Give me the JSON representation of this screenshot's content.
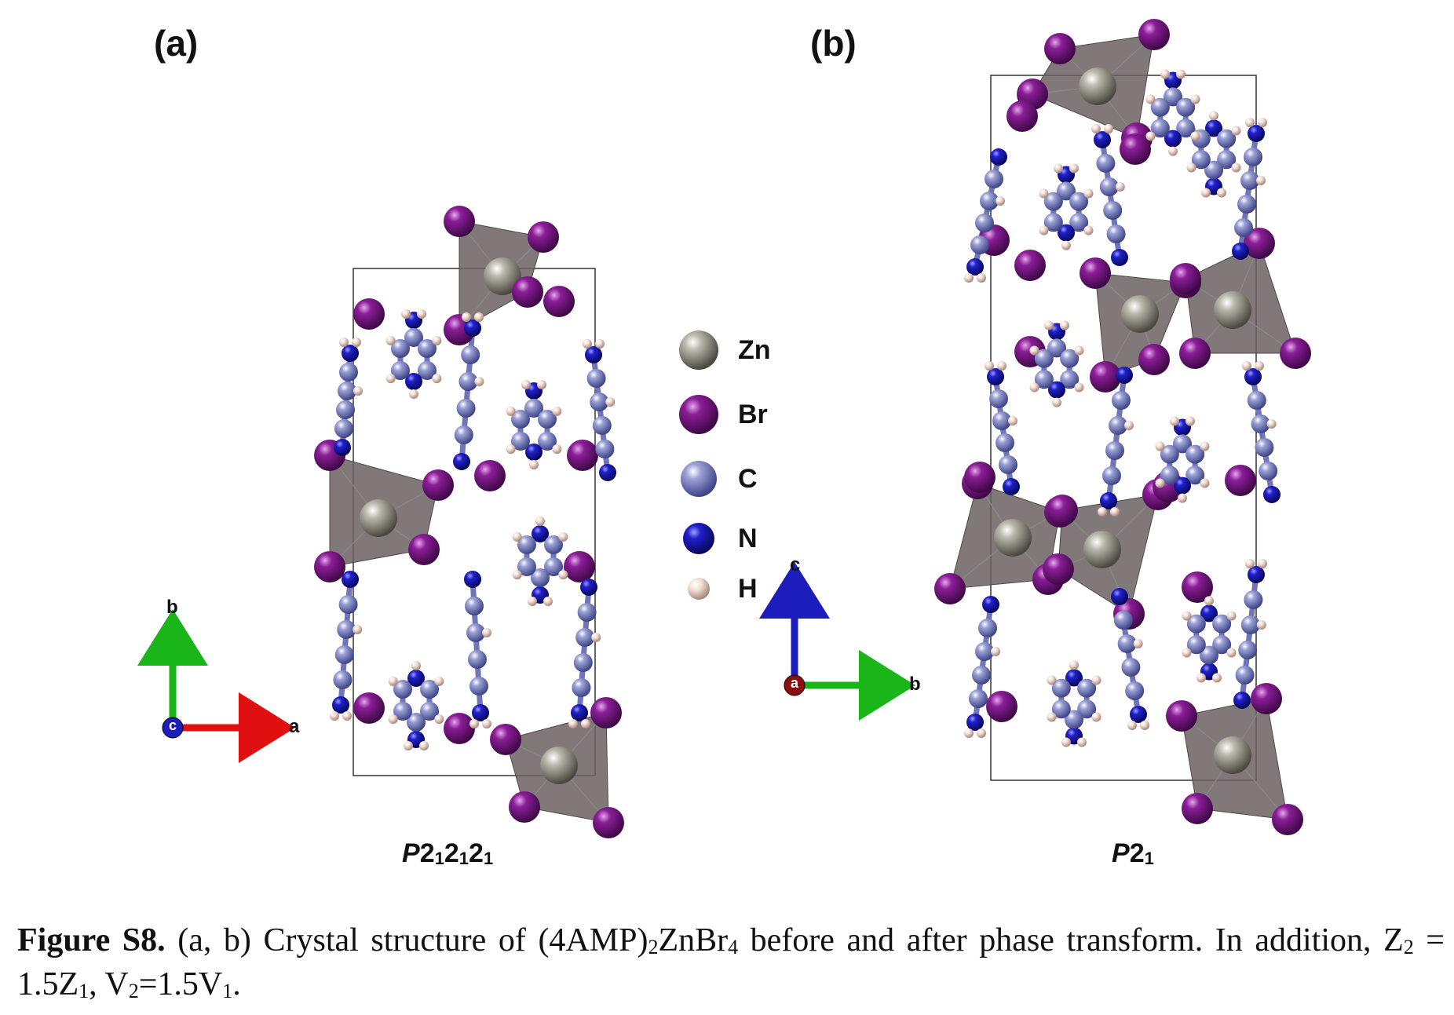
{
  "panels": [
    {
      "label": "(a)",
      "space_group": {
        "prefix": "P",
        "parts": [
          "2",
          "1",
          "2",
          "1",
          "2",
          "1"
        ]
      },
      "axes": {
        "up": "b",
        "right": "a",
        "origin": "c"
      }
    },
    {
      "label": "(b)",
      "space_group": {
        "prefix": "P",
        "parts": [
          "2",
          "1"
        ]
      },
      "axes": {
        "up": "c",
        "right": "b",
        "origin": "a"
      }
    }
  ],
  "legend": [
    {
      "label": "Zn",
      "color": "#8c8a7f"
    },
    {
      "label": "Br",
      "color": "#7a1486"
    },
    {
      "label": "C",
      "color": "#8d93c9"
    },
    {
      "label": "N",
      "color": "#1f1fbf"
    },
    {
      "label": "H",
      "color": "#f1d8cf"
    }
  ],
  "colors": {
    "polyhedron": "#6b6262",
    "axis_x": "#e01010",
    "axis_y": "#19b519",
    "axis_z": "#1d1dbd"
  },
  "caption": {
    "lead": "Figure S8.",
    "segments": [
      {
        "t": " (a, b) Crystal structure of (4AMP)"
      },
      {
        "t": "2",
        "sub": true
      },
      {
        "t": "ZnBr"
      },
      {
        "t": "4",
        "sub": true
      },
      {
        "t": " before and after phase transform. In addition, Z"
      },
      {
        "t": "2",
        "sub": true
      },
      {
        "t": " = 1.5Z"
      },
      {
        "t": "1",
        "sub": true
      },
      {
        "t": ", V"
      },
      {
        "t": "2",
        "sub": true
      },
      {
        "t": "=1.5V"
      },
      {
        "t": "1",
        "sub": true
      },
      {
        "t": "."
      }
    ]
  }
}
